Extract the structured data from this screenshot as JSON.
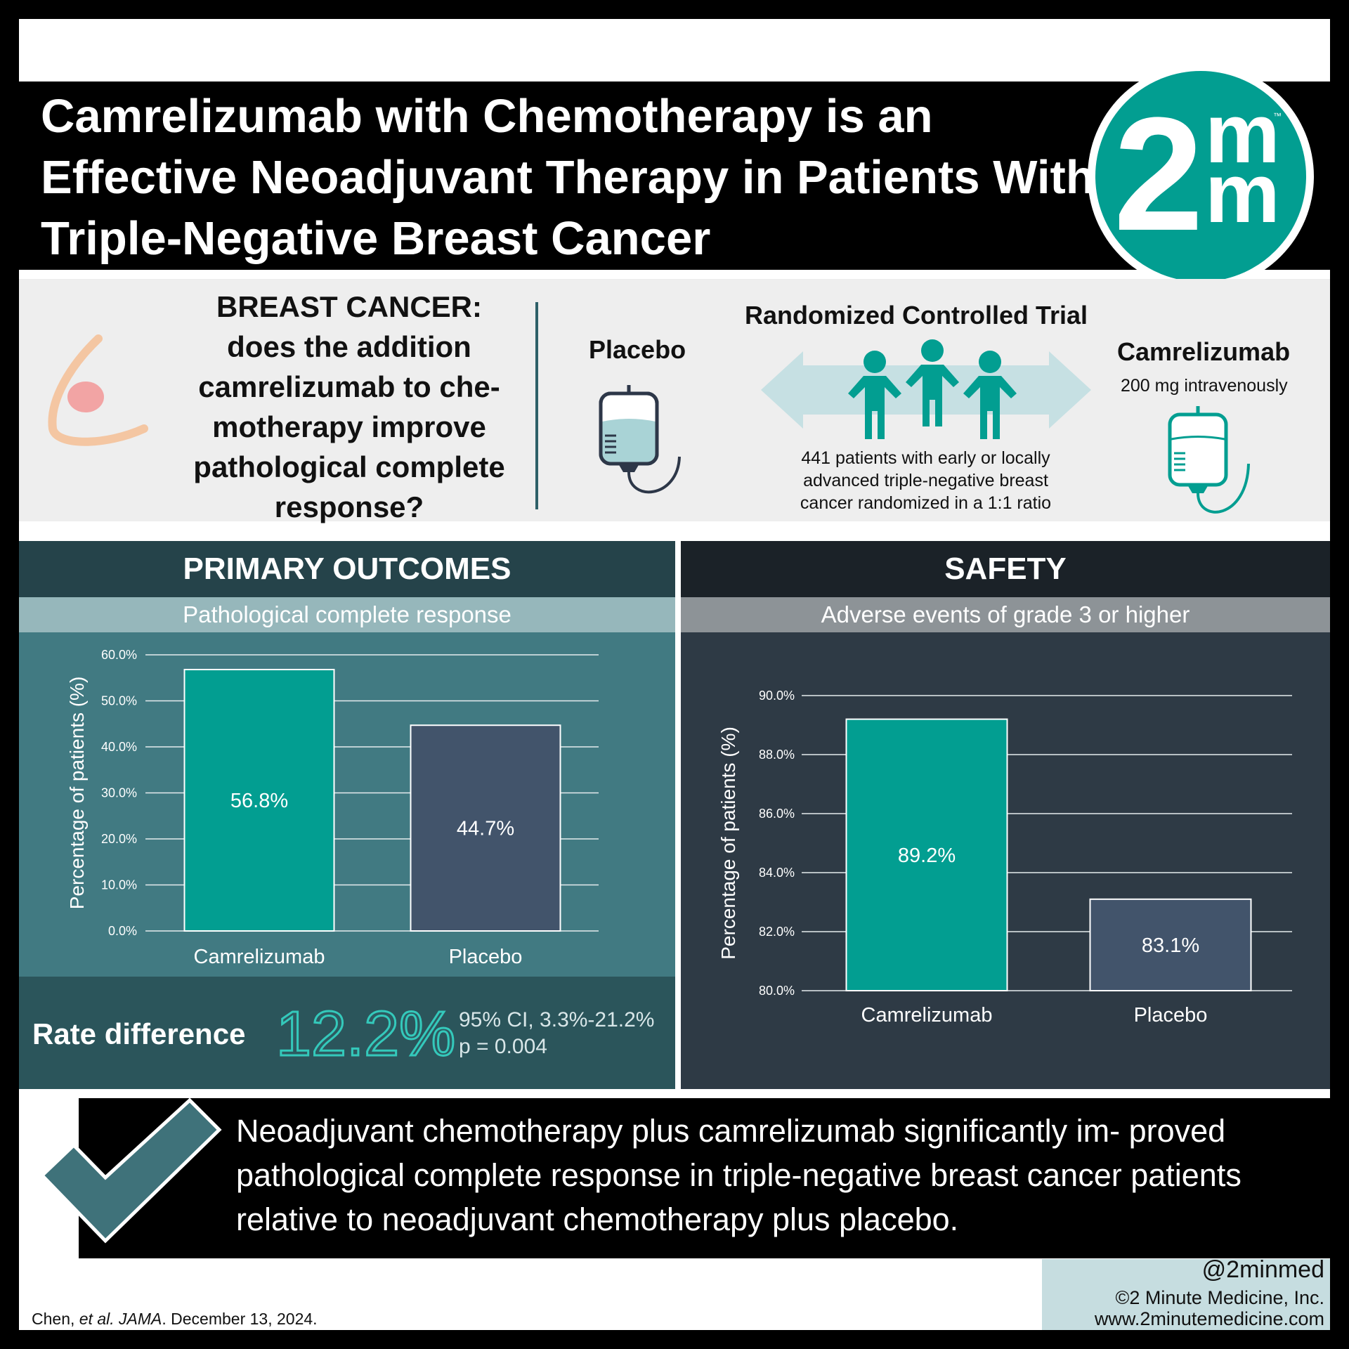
{
  "title": "Camrelizumab with Chemotherapy is an Effective Neoadjuvant Therapy in Patients With Triple-Negative Breast Cancer",
  "logo": {
    "big": "2",
    "small": "m",
    "tm": "™"
  },
  "question": {
    "heading": "BREAST CANCER:",
    "body": "does the addition camrelizumab to che- motherapy improve pathological complete response?"
  },
  "trial": {
    "title": "Randomized Controlled Trial",
    "placebo_label": "Placebo",
    "drug_label": "Camrelizumab",
    "drug_dose": "200 mg intravenously",
    "patients_line1": "441 patients with early or locally",
    "patients_line2": "advanced triple-negative breast",
    "patients_line3": "cancer randomized in a 1:1 ratio"
  },
  "primary": {
    "header": "PRIMARY OUTCOMES",
    "subheader": "Pathological complete response",
    "rate_label": "Rate difference",
    "rate_value": "12.2%",
    "ci": "95% CI, 3.3%-21.2%",
    "p": "p = 0.004"
  },
  "safety": {
    "header": "SAFETY",
    "subheader": "Adverse events of grade 3 or higher"
  },
  "chart_data": [
    {
      "type": "bar",
      "title": "Pathological complete response",
      "categories": [
        "Camrelizumab",
        "Placebo"
      ],
      "values": [
        56.8,
        44.7
      ],
      "value_labels": [
        "56.8%",
        "44.7%"
      ],
      "ylabel": "Percentage of patients (%)",
      "ylim": [
        0,
        60
      ],
      "yticks": [
        "0.0%",
        "10.0%",
        "20.0%",
        "30.0%",
        "40.0%",
        "50.0%",
        "60.0%"
      ],
      "colors": [
        "#029e91",
        "#42546b"
      ],
      "grid": true
    },
    {
      "type": "bar",
      "title": "Adverse events of grade 3 or higher",
      "categories": [
        "Camrelizumab",
        "Placebo"
      ],
      "values": [
        89.2,
        83.1
      ],
      "value_labels": [
        "89.2%",
        "83.1%"
      ],
      "ylabel": "Percentage of patients (%)",
      "ylim": [
        80,
        90
      ],
      "yticks": [
        "80.0%",
        "82.0%",
        "84.0%",
        "86.0%",
        "88.0%",
        "90.0%"
      ],
      "colors": [
        "#029e91",
        "#42546b"
      ],
      "grid": true
    }
  ],
  "conclusion": "Neoadjuvant chemotherapy plus camrelizumab significantly im- proved pathological complete response in triple-negative breast cancer patients relative to neoadjuvant chemotherapy plus placebo.",
  "citation": {
    "authors": "Chen, ",
    "etal": "et al.",
    "journal": "JAMA",
    "date": ". December 13, 2024."
  },
  "footer": {
    "handle": "@2minmed",
    "copyright": "©2 Minute Medicine, Inc.",
    "url": "www.2minutemedicine.com"
  },
  "colors": {
    "teal": "#029e91",
    "slate": "#42546b",
    "dark_teal_panel": "#417a82",
    "dark_panel": "#2e3a45"
  }
}
